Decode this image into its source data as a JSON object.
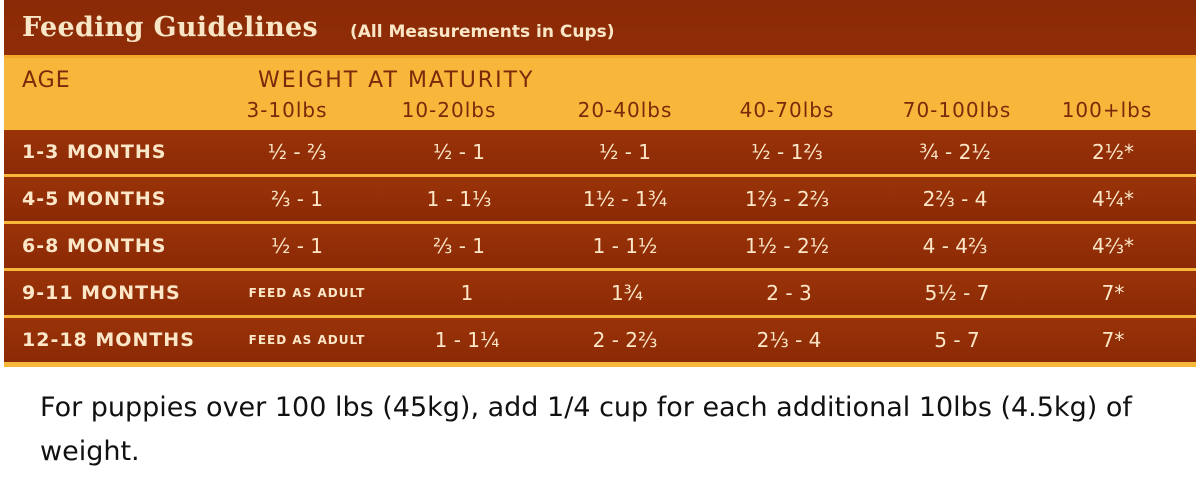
{
  "title": {
    "main": "Feeding Guidelines",
    "sub": "(All Measurements in Cups)"
  },
  "header": {
    "age_label": "AGE",
    "weight_label": "WEIGHT AT MATURITY",
    "weight_columns": [
      "3-10lbs",
      "10-20lbs",
      "20-40lbs",
      "40-70lbs",
      "70-100lbs",
      "100+lbs"
    ]
  },
  "rows": [
    {
      "age": "1-3 MONTHS",
      "values": [
        "½ - ⅔",
        "½ - 1",
        "½ - 1",
        "½ - 1⅔",
        "¾ - 2½",
        "2½*"
      ]
    },
    {
      "age": "4-5 MONTHS",
      "values": [
        "⅔ - 1",
        "1 - 1⅓",
        "1½ - 1¾",
        "1⅔ - 2⅔",
        "2⅔ - 4",
        "4¼*"
      ]
    },
    {
      "age": "6-8 MONTHS",
      "values": [
        "½ - 1",
        "⅔ - 1",
        "1 - 1½",
        "1½ - 2½",
        "4 - 4⅔",
        "4⅔*"
      ]
    },
    {
      "age": "9-11 MONTHS",
      "values": [
        "FEED AS ADULT",
        "1",
        "1¾",
        "2 - 3",
        "5½ - 7",
        "7*"
      ]
    },
    {
      "age": "12-18 MONTHS",
      "values": [
        "FEED AS ADULT",
        "1 - 1¼",
        "2 - 2⅔",
        "2⅓ - 4",
        "5 - 7",
        "7*"
      ]
    }
  ],
  "footnote": "For puppies over 100 lbs (45kg), add 1/4 cup for each additional 10lbs (4.5kg) of weight.",
  "colors": {
    "title_bg": "#8a2a06",
    "header_bg": "#f7b73a",
    "row_bg": "#9a3308",
    "row_text": "#fbe7c8",
    "header_text": "#7a2a0a"
  }
}
